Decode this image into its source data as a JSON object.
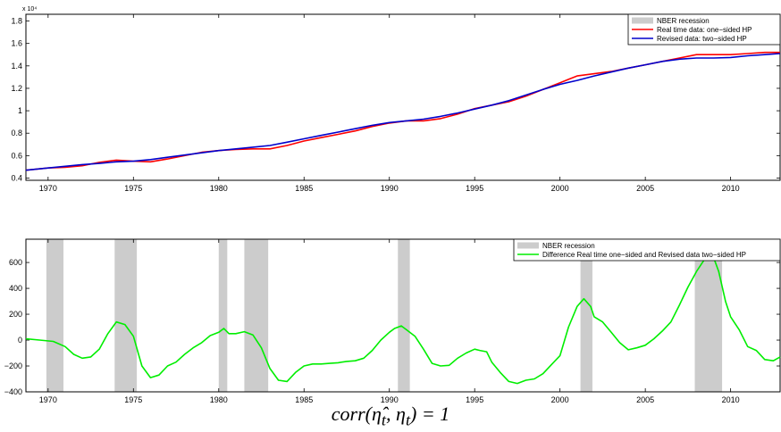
{
  "chart_data": [
    {
      "type": "line",
      "exponent_label": "x 10⁴",
      "xlim": [
        1968.7,
        2012.9
      ],
      "ylim": [
        0.38,
        1.86
      ],
      "xticks": [
        1970,
        1975,
        1980,
        1985,
        1990,
        1995,
        2000,
        2005,
        2010
      ],
      "yticks": [
        0.4,
        0.6,
        0.8,
        1,
        1.2,
        1.4,
        1.6,
        1.8
      ],
      "ytick_labels": [
        "0.4",
        "0.6",
        "0.8",
        "1",
        "1.2",
        "1.4",
        "1.6",
        "1.8"
      ],
      "legend": [
        "NBER recession",
        "Real time data: one−sided HP",
        "Revised data: two−sided HP"
      ],
      "colors": {
        "recession": "#cccccc",
        "realtime": "#ff0000",
        "revised": "#0000cc"
      },
      "series": [
        {
          "name": "Real time data: one−sided HP",
          "x": [
            1968.7,
            1970,
            1971,
            1972,
            1973,
            1974,
            1975,
            1976,
            1977,
            1978,
            1979,
            1980,
            1981,
            1982,
            1983,
            1984,
            1985,
            1986,
            1987,
            1988,
            1989,
            1990,
            1991,
            1992,
            1993,
            1994,
            1995,
            1996,
            1997,
            1998,
            1999,
            2000,
            2001,
            2002,
            2003,
            2004,
            2005,
            2006,
            2007,
            2008,
            2009,
            2010,
            2011,
            2012,
            2012.9
          ],
          "y": [
            0.47,
            0.49,
            0.495,
            0.51,
            0.54,
            0.56,
            0.55,
            0.545,
            0.57,
            0.6,
            0.63,
            0.645,
            0.655,
            0.66,
            0.66,
            0.69,
            0.73,
            0.76,
            0.79,
            0.82,
            0.86,
            0.89,
            0.91,
            0.91,
            0.93,
            0.97,
            1.02,
            1.05,
            1.08,
            1.13,
            1.19,
            1.25,
            1.31,
            1.33,
            1.35,
            1.38,
            1.41,
            1.44,
            1.47,
            1.5,
            1.5,
            1.5,
            1.51,
            1.52,
            1.52
          ]
        },
        {
          "name": "Revised data: two−sided HP",
          "x": [
            1968.7,
            1970,
            1971,
            1972,
            1973,
            1974,
            1975,
            1976,
            1977,
            1978,
            1979,
            1980,
            1981,
            1982,
            1983,
            1984,
            1985,
            1986,
            1987,
            1988,
            1989,
            1990,
            1991,
            1992,
            1993,
            1994,
            1995,
            1996,
            1997,
            1998,
            1999,
            2000,
            2001,
            2002,
            2003,
            2004,
            2005,
            2006,
            2007,
            2008,
            2009,
            2010,
            2011,
            2012,
            2012.9
          ],
          "y": [
            0.47,
            0.49,
            0.505,
            0.52,
            0.53,
            0.545,
            0.55,
            0.565,
            0.585,
            0.605,
            0.625,
            0.645,
            0.66,
            0.675,
            0.69,
            0.72,
            0.75,
            0.78,
            0.81,
            0.84,
            0.87,
            0.895,
            0.91,
            0.925,
            0.95,
            0.98,
            1.015,
            1.05,
            1.09,
            1.14,
            1.19,
            1.235,
            1.27,
            1.31,
            1.345,
            1.38,
            1.41,
            1.44,
            1.46,
            1.47,
            1.47,
            1.475,
            1.49,
            1.5,
            1.51
          ]
        }
      ]
    },
    {
      "type": "line",
      "xlim": [
        1968.7,
        2012.9
      ],
      "ylim": [
        -400,
        780
      ],
      "xticks": [
        1970,
        1975,
        1980,
        1985,
        1990,
        1995,
        2000,
        2005,
        2010
      ],
      "yticks": [
        -400,
        -200,
        0,
        200,
        400,
        600
      ],
      "ytick_labels": [
        "−400",
        "−200",
        "0",
        "200",
        "400",
        "600"
      ],
      "legend": [
        "NBER recession",
        "Difference Real time one−sided and Revised data two−sided HP"
      ],
      "colors": {
        "recession": "#cccccc",
        "difference": "#00ee00"
      },
      "recessions": [
        [
          1969.9,
          1970.9
        ],
        [
          1973.9,
          1975.2
        ],
        [
          1980.0,
          1980.5
        ],
        [
          1981.5,
          1982.9
        ],
        [
          1990.5,
          1991.2
        ],
        [
          2001.2,
          2001.9
        ],
        [
          2007.9,
          2009.5
        ]
      ],
      "series": [
        {
          "name": "Difference Real time one−sided and Revised data two−sided HP",
          "x": [
            1968.7,
            1969.5,
            1970.3,
            1971,
            1971.5,
            1972,
            1972.5,
            1973,
            1973.5,
            1974,
            1974.5,
            1975,
            1975.5,
            1976,
            1976.5,
            1977,
            1977.5,
            1978,
            1978.5,
            1979,
            1979.5,
            1980,
            1980.3,
            1980.6,
            1981,
            1981.5,
            1982,
            1982.5,
            1983,
            1983.5,
            1984,
            1984.5,
            1985,
            1985.5,
            1986,
            1986.5,
            1987,
            1987.5,
            1988,
            1988.5,
            1989,
            1989.5,
            1990,
            1990.3,
            1990.7,
            1991,
            1991.5,
            1992,
            1992.5,
            1993,
            1993.5,
            1994,
            1994.5,
            1995,
            1995.3,
            1995.7,
            1996,
            1996.5,
            1997,
            1997.5,
            1998,
            1998.5,
            1999,
            1999.5,
            2000,
            2000.5,
            2001,
            2001.4,
            2001.8,
            2002,
            2002.5,
            2003,
            2003.5,
            2004,
            2004.5,
            2005,
            2005.5,
            2006,
            2006.5,
            2007,
            2007.5,
            2008,
            2008.5,
            2009,
            2009.3,
            2009.7,
            2010,
            2010.5,
            2011,
            2011.5,
            2012,
            2012.5,
            2012.9
          ],
          "y": [
            10,
            0,
            -10,
            -50,
            -110,
            -140,
            -130,
            -70,
            50,
            140,
            120,
            30,
            -200,
            -290,
            -270,
            -200,
            -170,
            -110,
            -60,
            -20,
            35,
            60,
            90,
            50,
            50,
            65,
            40,
            -60,
            -220,
            -310,
            -320,
            -250,
            -200,
            -185,
            -185,
            -180,
            -175,
            -165,
            -160,
            -140,
            -80,
            0,
            60,
            90,
            110,
            80,
            30,
            -70,
            -180,
            -200,
            -195,
            -140,
            -100,
            -70,
            -80,
            -90,
            -170,
            -250,
            -320,
            -335,
            -310,
            -300,
            -260,
            -190,
            -120,
            100,
            260,
            320,
            260,
            180,
            140,
            60,
            -20,
            -75,
            -60,
            -40,
            10,
            70,
            140,
            270,
            410,
            530,
            630,
            640,
            530,
            300,
            180,
            80,
            -50,
            -80,
            -150,
            -160,
            -130
          ]
        }
      ]
    }
  ]
}
